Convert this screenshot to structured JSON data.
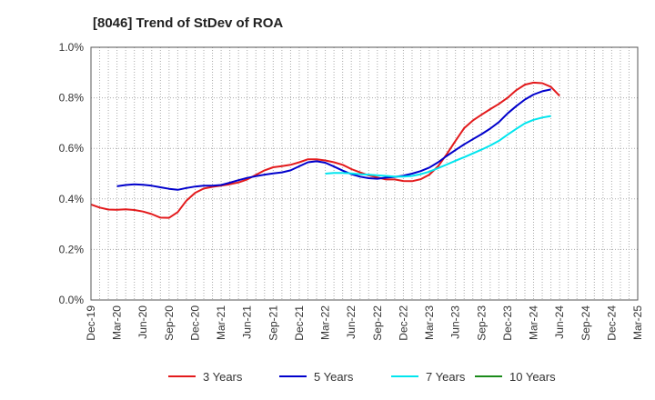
{
  "chart_data": {
    "type": "line",
    "title": "[8046]  Trend of StDev of ROA",
    "xlabel": "",
    "ylabel": "",
    "ylim": [
      0,
      1.0
    ],
    "y_ticks": [
      0,
      0.2,
      0.4,
      0.6,
      0.8,
      1.0
    ],
    "y_tick_labels": [
      "0.0%",
      "0.2%",
      "0.4%",
      "0.6%",
      "0.8%",
      "1.0%"
    ],
    "x_tick_labels": [
      "Dec-19",
      "Mar-20",
      "Jun-20",
      "Sep-20",
      "Dec-20",
      "Mar-21",
      "Jun-21",
      "Sep-21",
      "Dec-21",
      "Mar-22",
      "Jun-22",
      "Sep-22",
      "Dec-22",
      "Mar-23",
      "Jun-23",
      "Sep-23",
      "Dec-23",
      "Mar-24",
      "Jun-24",
      "Sep-24",
      "Dec-24",
      "Mar-25"
    ],
    "grid": true,
    "legend_position": "bottom",
    "series": [
      {
        "name": "3 Years",
        "color": "#e31a1c",
        "start": "Dec-19",
        "values": [
          0.378,
          0.366,
          0.358,
          0.357,
          0.359,
          0.356,
          0.35,
          0.34,
          0.326,
          0.325,
          0.348,
          0.393,
          0.424,
          0.441,
          0.448,
          0.453,
          0.458,
          0.465,
          0.477,
          0.495,
          0.513,
          0.525,
          0.53,
          0.535,
          0.545,
          0.557,
          0.557,
          0.552,
          0.545,
          0.535,
          0.518,
          0.505,
          0.493,
          0.485,
          0.477,
          0.477,
          0.471,
          0.47,
          0.478,
          0.496,
          0.529,
          0.577,
          0.63,
          0.68,
          0.71,
          0.733,
          0.755,
          0.776,
          0.8,
          0.83,
          0.852,
          0.86,
          0.858,
          0.843,
          0.808
        ]
      },
      {
        "name": "5 Years",
        "color": "#0000cc",
        "start": "Mar-20",
        "values": [
          0.45,
          0.455,
          0.458,
          0.456,
          0.452,
          0.446,
          0.44,
          0.436,
          0.443,
          0.449,
          0.452,
          0.452,
          0.455,
          0.464,
          0.474,
          0.483,
          0.49,
          0.496,
          0.501,
          0.505,
          0.513,
          0.529,
          0.545,
          0.549,
          0.543,
          0.528,
          0.512,
          0.498,
          0.488,
          0.482,
          0.48,
          0.484,
          0.487,
          0.492,
          0.5,
          0.51,
          0.524,
          0.545,
          0.57,
          0.593,
          0.616,
          0.636,
          0.656,
          0.678,
          0.704,
          0.738,
          0.767,
          0.793,
          0.813,
          0.826,
          0.833
        ]
      },
      {
        "name": "7 Years",
        "color": "#00e5ee",
        "start": "Mar-22",
        "values": [
          0.5,
          0.503,
          0.503,
          0.501,
          0.498,
          0.496,
          0.493,
          0.491,
          0.488,
          0.488,
          0.491,
          0.498,
          0.508,
          0.522,
          0.536,
          0.551,
          0.565,
          0.58,
          0.595,
          0.611,
          0.63,
          0.654,
          0.677,
          0.699,
          0.713,
          0.722,
          0.728
        ]
      },
      {
        "name": "10 Years",
        "color": "#1a8a1a",
        "start": "Mar-25",
        "values": []
      }
    ]
  }
}
